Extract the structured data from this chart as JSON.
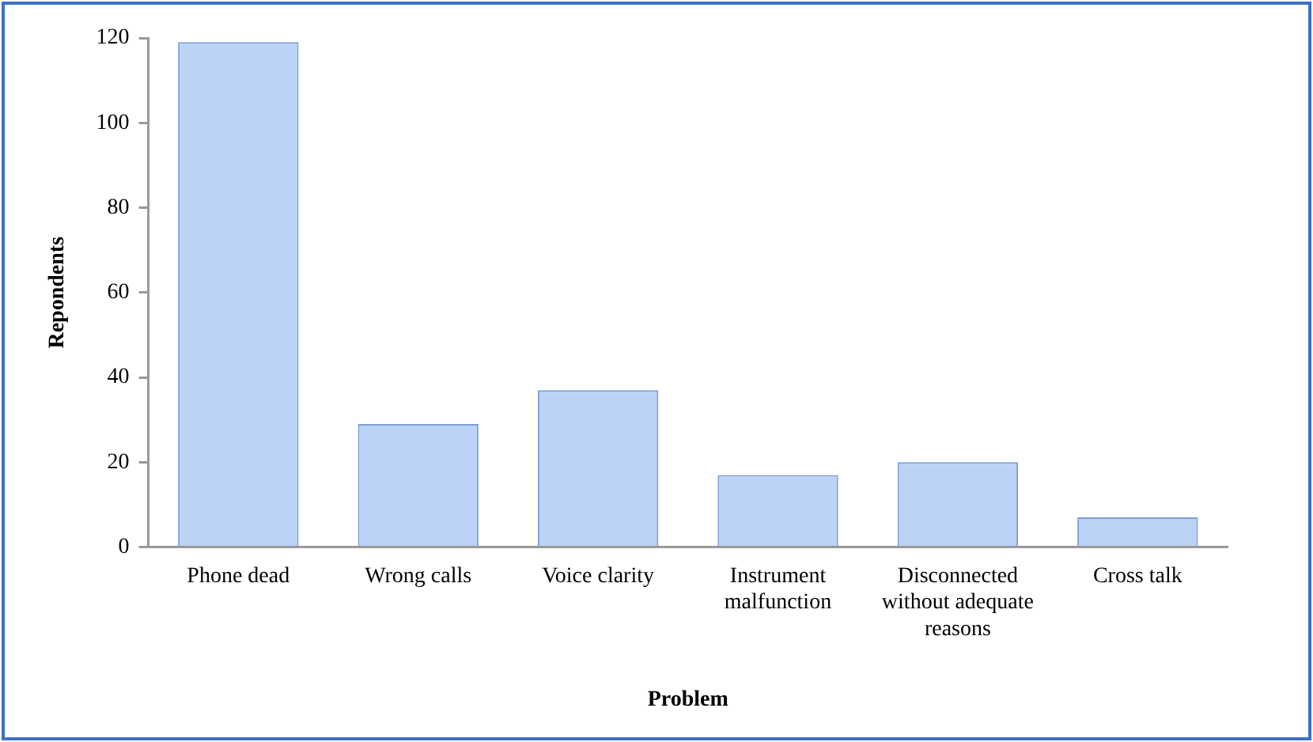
{
  "chart_data": {
    "type": "bar",
    "xlabel": "Problem",
    "ylabel": "Repondents",
    "categories": [
      "Phone dead",
      "Wrong calls",
      "Voice clarity",
      "Instrument malfunction",
      "Disconnected without adequate reasons",
      "Cross talk"
    ],
    "values": [
      119,
      29,
      37,
      17,
      20,
      7
    ],
    "color": "#bcd3f7",
    "ylim": [
      0,
      120
    ],
    "yticks": [
      0,
      20,
      40,
      60,
      80,
      100,
      120
    ],
    "grid": false
  }
}
